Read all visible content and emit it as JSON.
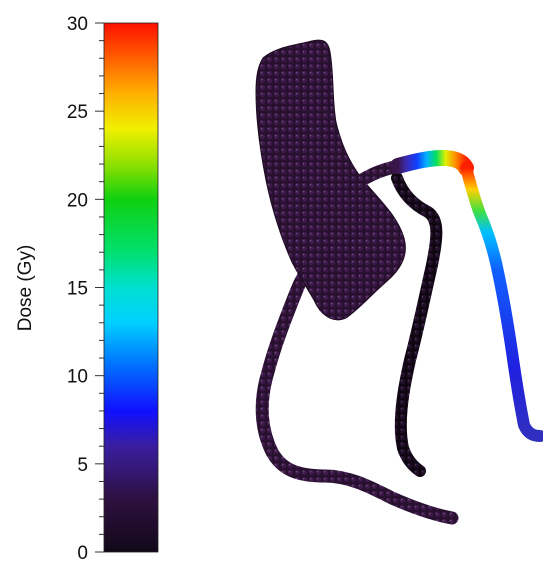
{
  "colorbar": {
    "label": "Dose (Gy)",
    "min": 0,
    "max": 30,
    "major_ticks": [
      "0",
      "5",
      "10",
      "15",
      "20",
      "25",
      "30"
    ],
    "major_tick_values": [
      0,
      5,
      10,
      15,
      20,
      25,
      30
    ],
    "minor_tick_step": 1,
    "stops": [
      {
        "value": 0,
        "color": "#120818"
      },
      {
        "value": 3,
        "color": "#2e1040"
      },
      {
        "value": 6,
        "color": "#3a1ea0"
      },
      {
        "value": 8,
        "color": "#1010ff"
      },
      {
        "value": 11,
        "color": "#0080ff"
      },
      {
        "value": 13,
        "color": "#00d0ff"
      },
      {
        "value": 15,
        "color": "#00e0d0"
      },
      {
        "value": 17,
        "color": "#00e070"
      },
      {
        "value": 20,
        "color": "#10d010"
      },
      {
        "value": 22,
        "color": "#90e000"
      },
      {
        "value": 24,
        "color": "#f0f000"
      },
      {
        "value": 26,
        "color": "#ffb000"
      },
      {
        "value": 28,
        "color": "#ff6000"
      },
      {
        "value": 30,
        "color": "#ff1000"
      }
    ]
  },
  "render": {
    "heart_chamber_color": "#2c0f33",
    "artery_dark_color": "#160818",
    "artery_purple_color": "#3a154a",
    "hot_segment_colors": [
      "#3a2ab0",
      "#1040ff",
      "#00b0ff",
      "#00e060",
      "#e0f000",
      "#ff9000",
      "#ff2000"
    ]
  }
}
